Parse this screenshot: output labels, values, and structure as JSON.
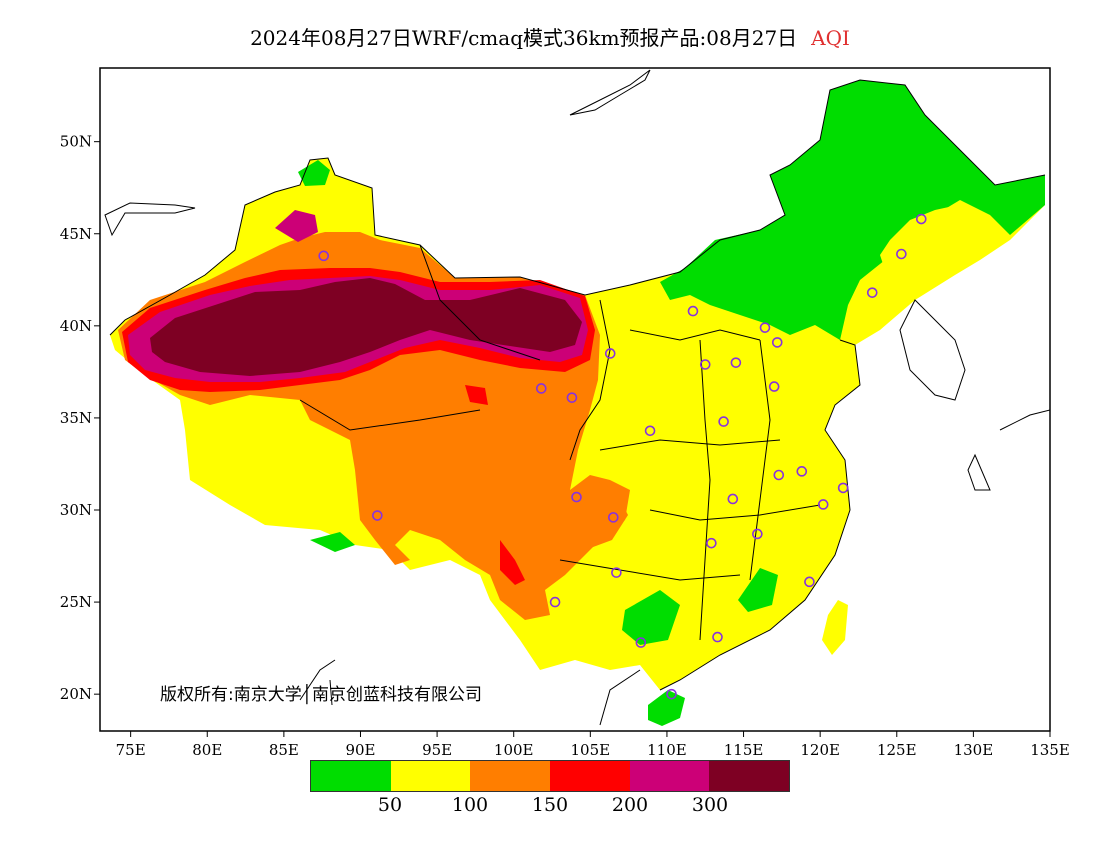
{
  "title": {
    "main": "2024年08月27日WRF/cmaq模式36km预报产品:08月27日",
    "variable": "AQI"
  },
  "copyright": "版权所有:南京大学│南京创蓝科技有限公司",
  "axes": {
    "lon_labels": [
      "75E",
      "80E",
      "85E",
      "90E",
      "95E",
      "100E",
      "105E",
      "110E",
      "115E",
      "120E",
      "125E",
      "130E",
      "135E"
    ],
    "lat_labels": [
      "20N",
      "25N",
      "30N",
      "35N",
      "40N",
      "45N",
      "50N"
    ]
  },
  "legend": {
    "colors": [
      "#00dd00",
      "#ffff00",
      "#ff7e00",
      "#ff0000",
      "#cc0077",
      "#7e0023"
    ],
    "labels": [
      "50",
      "100",
      "150",
      "200",
      "300"
    ]
  },
  "map_extent": {
    "lon": [
      73,
      135
    ],
    "lat": [
      18,
      54
    ]
  },
  "cities": [
    {
      "lon": 87.6,
      "lat": 43.8
    },
    {
      "lon": 126.6,
      "lat": 45.8
    },
    {
      "lon": 125.3,
      "lat": 43.9
    },
    {
      "lon": 123.4,
      "lat": 41.8
    },
    {
      "lon": 111.7,
      "lat": 40.8
    },
    {
      "lon": 116.4,
      "lat": 39.9
    },
    {
      "lon": 117.2,
      "lat": 39.1
    },
    {
      "lon": 106.3,
      "lat": 38.5
    },
    {
      "lon": 112.5,
      "lat": 37.9
    },
    {
      "lon": 114.5,
      "lat": 38.0
    },
    {
      "lon": 117.0,
      "lat": 36.7
    },
    {
      "lon": 101.8,
      "lat": 36.6
    },
    {
      "lon": 103.8,
      "lat": 36.1
    },
    {
      "lon": 108.9,
      "lat": 34.3
    },
    {
      "lon": 113.7,
      "lat": 34.8
    },
    {
      "lon": 118.8,
      "lat": 32.1
    },
    {
      "lon": 117.3,
      "lat": 31.9
    },
    {
      "lon": 121.5,
      "lat": 31.2
    },
    {
      "lon": 114.3,
      "lat": 30.6
    },
    {
      "lon": 120.2,
      "lat": 30.3
    },
    {
      "lon": 104.1,
      "lat": 30.7
    },
    {
      "lon": 106.5,
      "lat": 29.6
    },
    {
      "lon": 91.1,
      "lat": 29.7
    },
    {
      "lon": 112.9,
      "lat": 28.2
    },
    {
      "lon": 115.9,
      "lat": 28.7
    },
    {
      "lon": 106.7,
      "lat": 26.6
    },
    {
      "lon": 119.3,
      "lat": 26.1
    },
    {
      "lon": 102.7,
      "lat": 25.0
    },
    {
      "lon": 108.3,
      "lat": 22.8
    },
    {
      "lon": 113.3,
      "lat": 23.1
    },
    {
      "lon": 110.3,
      "lat": 20.0
    }
  ]
}
